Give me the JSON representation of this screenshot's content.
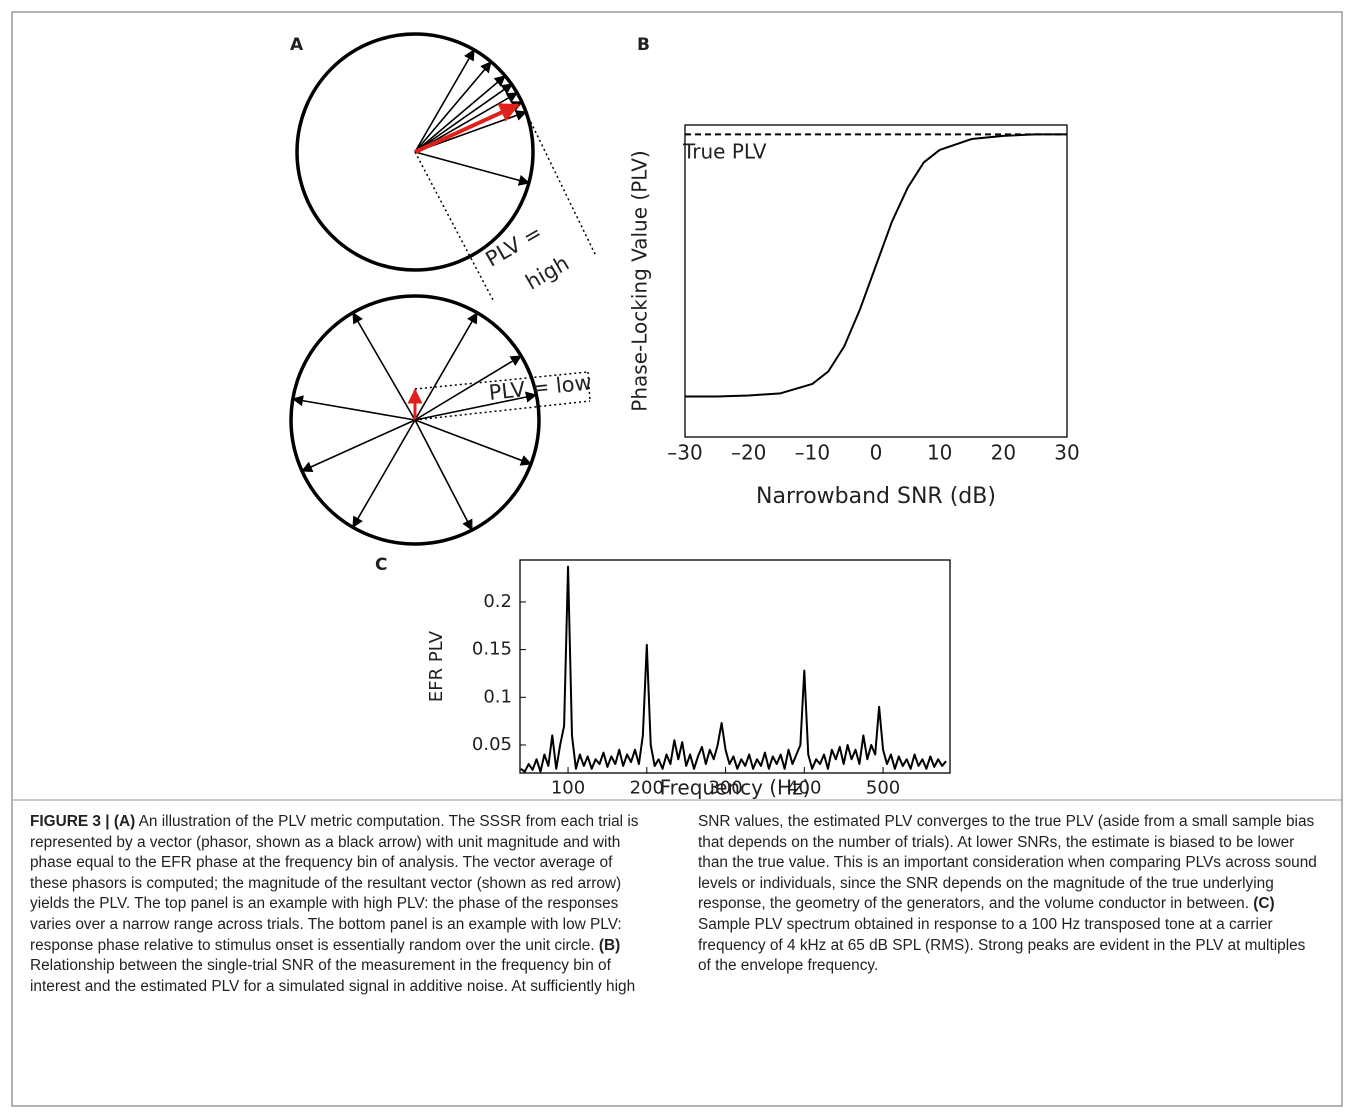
{
  "panel_a": {
    "panel": "A",
    "high_label": [
      "PLV =",
      "high"
    ],
    "low_label": "PLV = low"
  },
  "chart_data": [
    {
      "type": "line",
      "panel": "B",
      "ylabel": "Phase-Locking Value (PLV)",
      "xlabel": "Narrowband SNR (dB)",
      "reference_line": {
        "label": "True PLV",
        "value": 0.97
      },
      "x": [
        -30,
        -25,
        -20,
        -15,
        -10,
        -7.5,
        -5,
        -2.5,
        0,
        2.5,
        5,
        7.5,
        10,
        15,
        20,
        25,
        30
      ],
      "values": [
        0.13,
        0.13,
        0.133,
        0.14,
        0.17,
        0.21,
        0.29,
        0.41,
        0.55,
        0.69,
        0.8,
        0.88,
        0.92,
        0.955,
        0.965,
        0.97,
        0.97
      ],
      "color": "#000000",
      "xlim": [
        -30,
        30
      ],
      "ylim": [
        0,
        1
      ],
      "xticks": [
        {
          "value": -30,
          "label": "–30"
        },
        {
          "value": -20,
          "label": "–20"
        },
        {
          "value": -10,
          "label": "–10"
        },
        0,
        10,
        20,
        30
      ]
    },
    {
      "type": "line",
      "panel": "C",
      "ylabel": "EFR PLV",
      "xlabel": "Frequency (Hz)",
      "x": [
        40,
        45,
        50,
        55,
        60,
        65,
        70,
        75,
        80,
        85,
        90,
        95,
        100,
        105,
        110,
        115,
        120,
        125,
        130,
        135,
        140,
        145,
        150,
        155,
        160,
        165,
        170,
        175,
        180,
        185,
        190,
        195,
        200,
        205,
        210,
        215,
        220,
        225,
        230,
        235,
        240,
        245,
        250,
        255,
        260,
        265,
        270,
        275,
        280,
        285,
        290,
        295,
        300,
        305,
        310,
        315,
        320,
        325,
        330,
        335,
        340,
        345,
        350,
        355,
        360,
        365,
        370,
        375,
        380,
        385,
        390,
        395,
        400,
        405,
        410,
        415,
        420,
        425,
        430,
        435,
        440,
        445,
        450,
        455,
        460,
        465,
        470,
        475,
        480,
        485,
        490,
        495,
        500,
        505,
        510,
        515,
        520,
        525,
        530,
        535,
        540,
        545,
        550,
        555,
        560,
        565,
        570,
        575,
        580
      ],
      "values": [
        0.025,
        0.022,
        0.03,
        0.024,
        0.035,
        0.022,
        0.04,
        0.028,
        0.06,
        0.025,
        0.05,
        0.07,
        0.237,
        0.06,
        0.025,
        0.04,
        0.028,
        0.038,
        0.025,
        0.035,
        0.03,
        0.042,
        0.027,
        0.038,
        0.03,
        0.045,
        0.028,
        0.04,
        0.032,
        0.045,
        0.03,
        0.06,
        0.155,
        0.05,
        0.028,
        0.035,
        0.025,
        0.04,
        0.03,
        0.055,
        0.035,
        0.053,
        0.028,
        0.04,
        0.025,
        0.038,
        0.048,
        0.03,
        0.045,
        0.035,
        0.05,
        0.073,
        0.045,
        0.03,
        0.038,
        0.025,
        0.035,
        0.028,
        0.04,
        0.025,
        0.035,
        0.028,
        0.042,
        0.025,
        0.038,
        0.03,
        0.04,
        0.025,
        0.045,
        0.03,
        0.04,
        0.05,
        0.128,
        0.04,
        0.025,
        0.035,
        0.03,
        0.04,
        0.025,
        0.045,
        0.035,
        0.048,
        0.03,
        0.05,
        0.035,
        0.045,
        0.03,
        0.06,
        0.035,
        0.05,
        0.04,
        0.09,
        0.045,
        0.03,
        0.04,
        0.025,
        0.038,
        0.028,
        0.035,
        0.025,
        0.04,
        0.028,
        0.035,
        0.025,
        0.038,
        0.027,
        0.035,
        0.028,
        0.033
      ],
      "color": "#000000",
      "xlim": [
        39,
        585
      ],
      "ylim": [
        0.0206,
        0.244
      ],
      "xticks": [
        100,
        200,
        300,
        400,
        500
      ],
      "yticks": [
        0.05,
        0.1,
        0.15,
        0.2
      ]
    }
  ],
  "caption": {
    "lead": "FIGURE 3 | (A)",
    "text_a": "An illustration of the PLV metric computation. The SSSR from each trial is represented by a vector (phasor, shown as a black arrow) with unit magnitude and with phase equal to the EFR phase at the frequency bin of analysis. The vector average of these phasors is computed; the magnitude of the resultant vector (shown as red arrow) yields the PLV. The top panel is an example with high PLV: the phase of the responses varies over a narrow range across trials. The bottom panel is an example with low PLV: response phase relative to stimulus onset is essentially random over the unit circle.",
    "label_b": "(B)",
    "text_b": "Relationship between the single-trial SNR of the measurement in the frequency bin of interest and the estimated PLV for a simulated signal in additive noise. At sufficiently high SNR values, the estimated PLV converges to the true PLV (aside from a small sample bias that depends on the number of trials). At lower SNRs, the estimate is biased to be lower than the true value. This is an important consideration when comparing PLVs across sound levels or individuals, since the SNR depends on the magnitude of the true underlying response, the geometry of the generators, and the volume conductor in between.",
    "label_c": "(C)",
    "text_c": "Sample PLV spectrum obtained in response to a 100 Hz transposed tone at a carrier frequency of 4 kHz at 65 dB SPL (RMS). Strong peaks are evident in the PLV at multiples of the envelope frequency."
  }
}
